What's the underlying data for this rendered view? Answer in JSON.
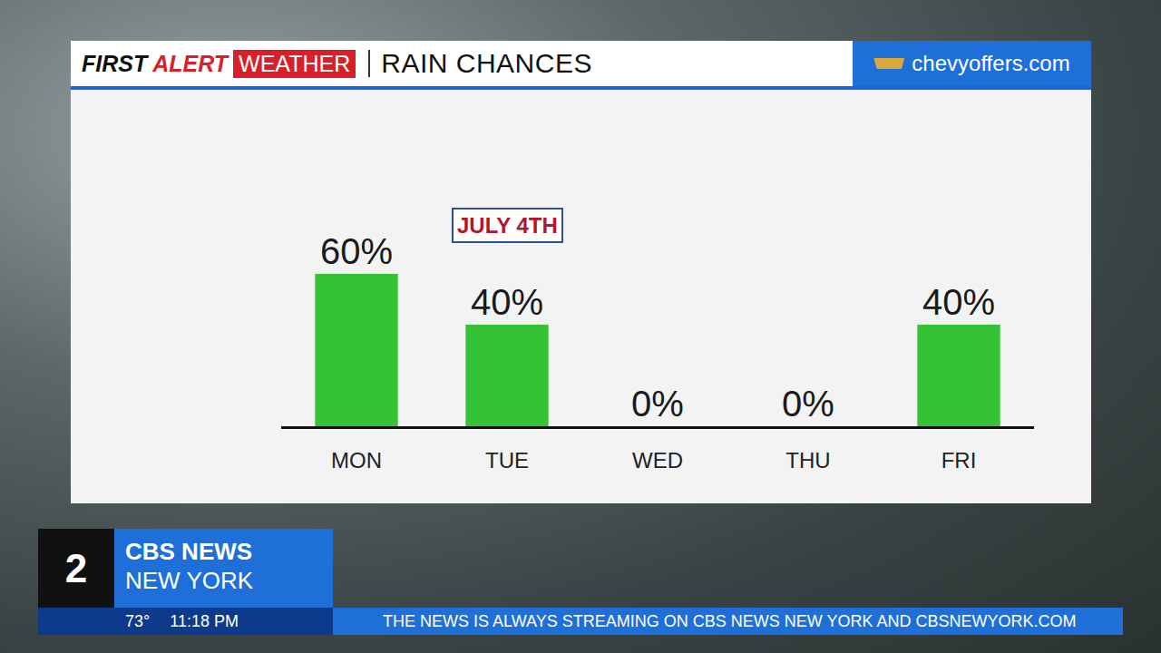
{
  "chart_data": {
    "type": "bar",
    "title": "RAIN CHANCES",
    "categories": [
      "MON",
      "TUE",
      "WED",
      "THU",
      "FRI"
    ],
    "values": [
      60,
      40,
      0,
      0,
      40
    ],
    "value_labels": [
      "60%",
      "40%",
      "0%",
      "0%",
      "40%"
    ],
    "color": "#35c234",
    "ylim": [
      0,
      100
    ],
    "data_labels": true,
    "tick_labels": "x",
    "grid": false,
    "annotations": [
      {
        "text": "JULY 4TH",
        "x": "TUE"
      }
    ]
  },
  "header": {
    "first": "FIRST",
    "alert": "ALERT",
    "weather": "WEATHER"
  },
  "sponsor": "chevyoffers.com",
  "station": {
    "channel": "2",
    "network": "CBS NEWS",
    "city": "NEW YORK"
  },
  "ticker": {
    "temperature": "73°",
    "time": "11:18 PM",
    "text": "THE NEWS IS ALWAYS STREAMING ON CBS NEWS NEW YORK AND CBSNEWYORK.COM"
  }
}
